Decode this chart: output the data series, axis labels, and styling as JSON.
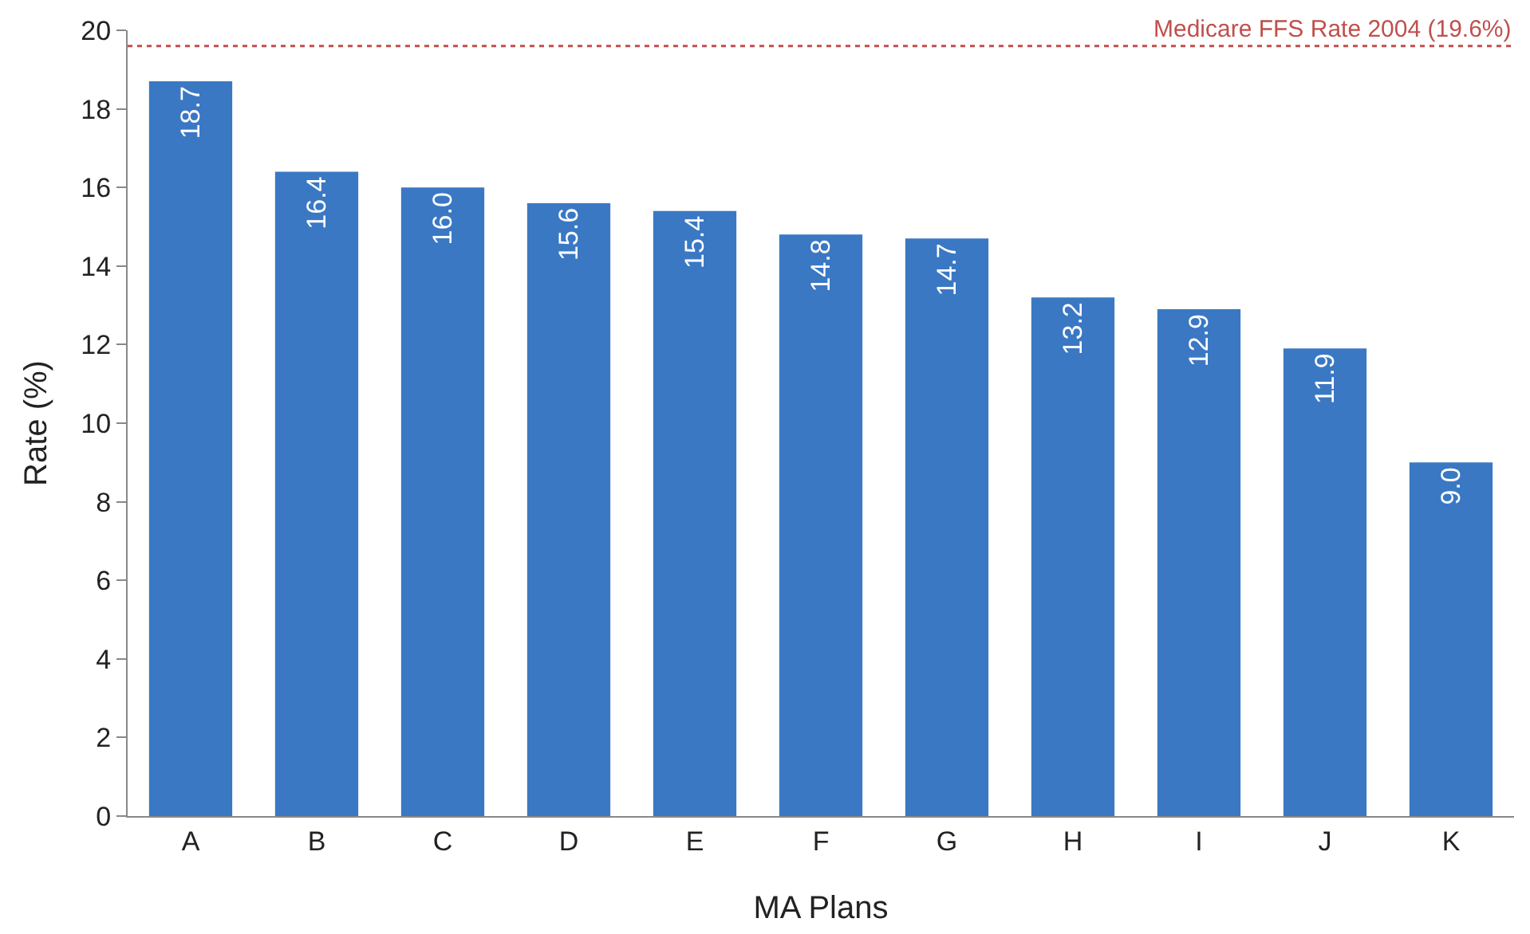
{
  "chart_data": {
    "type": "bar",
    "xlabel": "MA Plans",
    "ylabel": "Rate (%)",
    "categories": [
      "A",
      "B",
      "C",
      "D",
      "E",
      "F",
      "G",
      "H",
      "I",
      "J",
      "K"
    ],
    "values": [
      18.7,
      16.4,
      16.0,
      15.6,
      15.4,
      14.8,
      14.7,
      13.2,
      12.9,
      11.9,
      9.0
    ],
    "value_labels": [
      "18.7",
      "16.4",
      "16.0",
      "15.6",
      "15.4",
      "14.8",
      "14.7",
      "13.2",
      "12.9",
      "11.9",
      "9.0"
    ],
    "color": "#3a78c4",
    "ylim": [
      0,
      20
    ],
    "yticks": [
      0,
      2,
      4,
      6,
      8,
      10,
      12,
      14,
      16,
      18,
      20
    ],
    "ref_lines": [
      {
        "axis": "y",
        "value": 19.6,
        "label": "Medicare FFS Rate 2004 (19.6%)",
        "color": "#c0504d",
        "line_style": "dotted"
      }
    ]
  }
}
